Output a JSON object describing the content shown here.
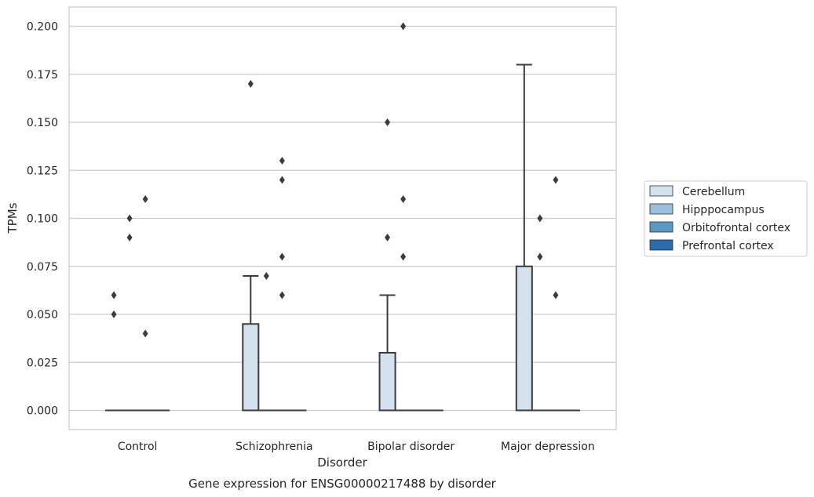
{
  "chart_data": {
    "type": "box",
    "caption": "Gene expression for ENSG00000217488 by disorder",
    "xlabel": "Disorder",
    "ylabel": "TPMs",
    "ylim": [
      -0.01,
      0.21
    ],
    "yticks": [
      "0.000",
      "0.025",
      "0.050",
      "0.075",
      "0.100",
      "0.125",
      "0.150",
      "0.175",
      "0.200"
    ],
    "grid": true,
    "legend_position": "right",
    "categories": [
      "Control",
      "Schizophrenia",
      "Bipolar disorder",
      "Major depression"
    ],
    "series": [
      {
        "name": "Cerebellum",
        "color": "#d4e2f0",
        "boxes": [
          {
            "category": "Control",
            "q1": 0,
            "median": 0,
            "q3": 0,
            "whisker_low": 0,
            "whisker_high": 0,
            "outliers": [
              0.05,
              0.06
            ]
          },
          {
            "category": "Schizophrenia",
            "q1": 0,
            "median": 0,
            "q3": 0.045,
            "whisker_low": 0,
            "whisker_high": 0.07,
            "outliers": [
              0.17
            ]
          },
          {
            "category": "Bipolar disorder",
            "q1": 0,
            "median": 0,
            "q3": 0.03,
            "whisker_low": 0,
            "whisker_high": 0.06,
            "outliers": [
              0.09,
              0.15
            ]
          },
          {
            "category": "Major depression",
            "q1": 0,
            "median": 0,
            "q3": 0.075,
            "whisker_low": 0,
            "whisker_high": 0.18,
            "outliers": []
          }
        ]
      },
      {
        "name": "Hipppocampus",
        "color": "#9ac0db",
        "boxes": [
          {
            "category": "Control",
            "q1": 0,
            "median": 0,
            "q3": 0,
            "whisker_low": 0,
            "whisker_high": 0,
            "outliers": [
              0.09,
              0.1
            ]
          },
          {
            "category": "Schizophrenia",
            "q1": 0,
            "median": 0,
            "q3": 0,
            "whisker_low": 0,
            "whisker_high": 0,
            "outliers": [
              0.07
            ]
          },
          {
            "category": "Bipolar disorder",
            "q1": 0,
            "median": 0,
            "q3": 0,
            "whisker_low": 0,
            "whisker_high": 0,
            "outliers": [
              0.08,
              0.11,
              0.2
            ]
          },
          {
            "category": "Major depression",
            "q1": 0,
            "median": 0,
            "q3": 0,
            "whisker_low": 0,
            "whisker_high": 0,
            "outliers": [
              0.08,
              0.1
            ]
          }
        ]
      },
      {
        "name": "Orbitofrontal cortex",
        "color": "#5c98c4",
        "boxes": [
          {
            "category": "Control",
            "q1": 0,
            "median": 0,
            "q3": 0,
            "whisker_low": 0,
            "whisker_high": 0,
            "outliers": [
              0.04,
              0.11
            ]
          },
          {
            "category": "Schizophrenia",
            "q1": 0,
            "median": 0,
            "q3": 0,
            "whisker_low": 0,
            "whisker_high": 0,
            "outliers": [
              0.06,
              0.08,
              0.12,
              0.13
            ]
          },
          {
            "category": "Bipolar disorder",
            "q1": 0,
            "median": 0,
            "q3": 0,
            "whisker_low": 0,
            "whisker_high": 0,
            "outliers": []
          },
          {
            "category": "Major depression",
            "q1": 0,
            "median": 0,
            "q3": 0,
            "whisker_low": 0,
            "whisker_high": 0,
            "outliers": [
              0.06,
              0.12
            ]
          }
        ]
      },
      {
        "name": "Prefrontal cortex",
        "color": "#2a6ca8",
        "boxes": [
          {
            "category": "Control",
            "q1": 0,
            "median": 0,
            "q3": 0,
            "whisker_low": 0,
            "whisker_high": 0,
            "outliers": []
          },
          {
            "category": "Schizophrenia",
            "q1": 0,
            "median": 0,
            "q3": 0,
            "whisker_low": 0,
            "whisker_high": 0,
            "outliers": []
          },
          {
            "category": "Bipolar disorder",
            "q1": 0,
            "median": 0,
            "q3": 0,
            "whisker_low": 0,
            "whisker_high": 0,
            "outliers": []
          },
          {
            "category": "Major depression",
            "q1": 0,
            "median": 0,
            "q3": 0,
            "whisker_low": 0,
            "whisker_high": 0,
            "outliers": []
          }
        ]
      }
    ]
  }
}
